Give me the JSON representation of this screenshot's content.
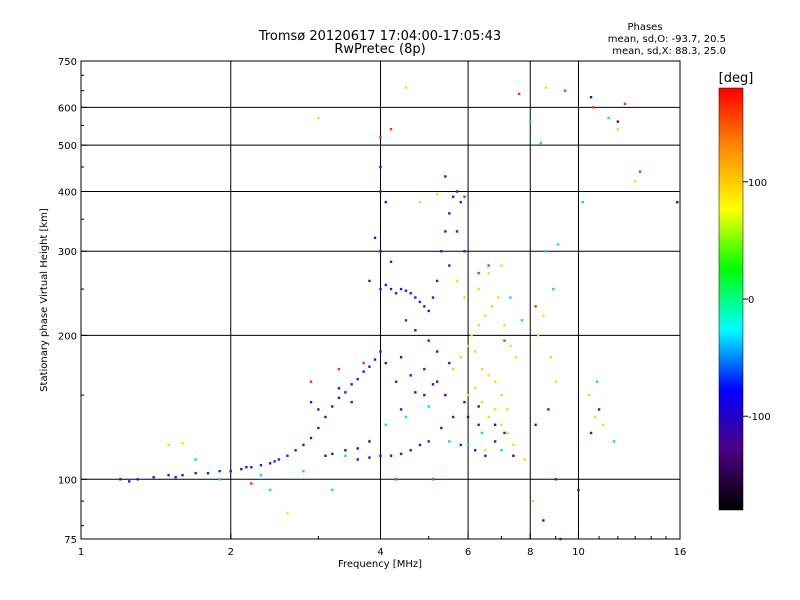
{
  "chart_data": {
    "type": "scatter",
    "title": "Tromsø 20120617 17:04:00-17:05:43",
    "subtitle": "RwPretec (8p)",
    "xlabel": "Frequency [MHz]",
    "ylabel": "Stationary phase Virtual Height [km]",
    "xscale": "log",
    "yscale": "log",
    "xlim": [
      1,
      16
    ],
    "ylim": [
      75,
      750
    ],
    "x_ticks": [
      1,
      2,
      4,
      6,
      8,
      10,
      16
    ],
    "x_tick_labels": [
      "1",
      "2",
      "4",
      "6",
      "8",
      "10",
      "16"
    ],
    "y_ticks": [
      75,
      100,
      200,
      300,
      400,
      500,
      600,
      750
    ],
    "y_tick_labels": [
      "75",
      "100",
      "200",
      "300",
      "400",
      "500",
      "600",
      "750"
    ],
    "x_gridlines": [
      2,
      4,
      6,
      8,
      10
    ],
    "y_gridlines": [
      100,
      200,
      300,
      400,
      500,
      600
    ],
    "legend": {
      "title": "Phases",
      "line1": "mean, sd,O: -93.7, 20.5",
      "line2": "mean, sd,X:  88.3, 25.0",
      "position": "top-right"
    },
    "colorbar": {
      "label": "[deg]",
      "ticks": [
        100,
        0,
        -100
      ],
      "tick_labels": [
        "100",
        "0",
        "-100"
      ],
      "range": [
        -180,
        180
      ],
      "colors": [
        "#000000",
        "#4b0082",
        "#0000ff",
        "#00ffff",
        "#00ff00",
        "#ffff00",
        "#ff8c00",
        "#ff0000"
      ]
    },
    "series": [
      {
        "name": "O-mode trace (blue)",
        "color": "#1a1aff",
        "points": [
          [
            1.2,
            100
          ],
          [
            1.3,
            100
          ],
          [
            1.4,
            101
          ],
          [
            1.5,
            102
          ],
          [
            1.6,
            102
          ],
          [
            1.7,
            103
          ],
          [
            1.8,
            103
          ],
          [
            1.9,
            104
          ],
          [
            2.0,
            104
          ],
          [
            2.1,
            105
          ],
          [
            2.2,
            106
          ],
          [
            2.3,
            107
          ],
          [
            2.4,
            108
          ],
          [
            2.5,
            110
          ],
          [
            2.6,
            112
          ],
          [
            2.7,
            115
          ],
          [
            2.8,
            118
          ],
          [
            2.9,
            122
          ],
          [
            3.0,
            128
          ],
          [
            3.1,
            135
          ],
          [
            3.2,
            142
          ],
          [
            3.3,
            148
          ],
          [
            3.4,
            152
          ],
          [
            3.5,
            158
          ],
          [
            3.6,
            162
          ],
          [
            3.7,
            168
          ],
          [
            3.8,
            172
          ],
          [
            3.9,
            178
          ],
          [
            4.0,
            185
          ],
          [
            4.0,
            250
          ],
          [
            4.1,
            255
          ],
          [
            4.2,
            250
          ],
          [
            4.3,
            245
          ],
          [
            4.4,
            250
          ],
          [
            4.5,
            248
          ],
          [
            4.6,
            245
          ],
          [
            4.7,
            240
          ],
          [
            4.8,
            235
          ],
          [
            4.9,
            230
          ],
          [
            5.0,
            225
          ],
          [
            5.1,
            240
          ],
          [
            5.2,
            260
          ],
          [
            5.3,
            300
          ],
          [
            5.4,
            330
          ],
          [
            5.5,
            360
          ],
          [
            5.6,
            390
          ],
          [
            5.7,
            400
          ],
          [
            5.8,
            380
          ],
          [
            4.0,
            300
          ],
          [
            4.0,
            400
          ],
          [
            4.0,
            450
          ],
          [
            3.9,
            320
          ],
          [
            3.8,
            260
          ],
          [
            4.5,
            215
          ],
          [
            4.7,
            205
          ],
          [
            5.0,
            195
          ],
          [
            5.2,
            185
          ],
          [
            5.5,
            175
          ],
          [
            3.6,
            110
          ],
          [
            3.8,
            111
          ],
          [
            4.0,
            112
          ],
          [
            4.2,
            112
          ],
          [
            4.4,
            113
          ],
          [
            4.6,
            115
          ],
          [
            4.8,
            118
          ],
          [
            5.0,
            120
          ],
          [
            5.3,
            128
          ],
          [
            5.6,
            135
          ],
          [
            5.9,
            145
          ],
          [
            6.2,
            115
          ],
          [
            6.5,
            112
          ],
          [
            6.8,
            120
          ],
          [
            7.1,
            125
          ],
          [
            4.3,
            160
          ],
          [
            4.6,
            165
          ],
          [
            4.9,
            170
          ],
          [
            5.2,
            160
          ],
          [
            3.0,
            140
          ],
          [
            2.9,
            145
          ],
          [
            3.3,
            155
          ],
          [
            5.5,
            280
          ],
          [
            5.7,
            330
          ],
          [
            5.9,
            300
          ],
          [
            4.2,
            285
          ],
          [
            5.4,
            430
          ],
          [
            8.2,
            130
          ],
          [
            8.7,
            140
          ],
          [
            9.0,
            100
          ],
          [
            10.6,
            125
          ],
          [
            11.0,
            140
          ],
          [
            1.25,
            99
          ],
          [
            1.55,
            101
          ],
          [
            2.15,
            106
          ],
          [
            2.45,
            109
          ],
          [
            3.5,
            145
          ],
          [
            4.4,
            140
          ],
          [
            4.9,
            150
          ],
          [
            5.8,
            118
          ],
          [
            6.3,
            130
          ],
          [
            4.1,
            380
          ]
        ]
      },
      {
        "name": "X-mode trace (yellow/green)",
        "color": "#e6e600",
        "points": [
          [
            5.6,
            170
          ],
          [
            5.8,
            180
          ],
          [
            6.0,
            190
          ],
          [
            6.2,
            185
          ],
          [
            6.4,
            170
          ],
          [
            6.6,
            165
          ],
          [
            6.8,
            160
          ],
          [
            7.0,
            150
          ],
          [
            7.2,
            140
          ],
          [
            6.1,
            200
          ],
          [
            6.3,
            210
          ],
          [
            6.5,
            220
          ],
          [
            6.7,
            230
          ],
          [
            6.9,
            240
          ],
          [
            7.1,
            210
          ],
          [
            7.3,
            190
          ],
          [
            7.5,
            180
          ],
          [
            6.0,
            150
          ],
          [
            6.2,
            155
          ],
          [
            6.4,
            145
          ],
          [
            6.6,
            135
          ],
          [
            6.8,
            140
          ],
          [
            7.0,
            130
          ],
          [
            7.2,
            125
          ],
          [
            5.7,
            260
          ],
          [
            5.9,
            240
          ],
          [
            6.3,
            250
          ],
          [
            6.6,
            270
          ],
          [
            7.0,
            280
          ],
          [
            8.3,
            200
          ],
          [
            8.5,
            220
          ],
          [
            8.8,
            180
          ],
          [
            9.0,
            160
          ],
          [
            8.6,
            660
          ],
          [
            4.5,
            660
          ],
          [
            4.8,
            380
          ],
          [
            5.2,
            395
          ],
          [
            3.0,
            570
          ],
          [
            1.5,
            118
          ],
          [
            1.6,
            119
          ],
          [
            10.5,
            150
          ],
          [
            10.8,
            135
          ],
          [
            11.2,
            130
          ],
          [
            12.0,
            540
          ],
          [
            13.0,
            420
          ],
          [
            6.5,
            115
          ],
          [
            7.4,
            118
          ],
          [
            7.8,
            110
          ],
          [
            8.1,
            90
          ],
          [
            2.6,
            85
          ]
        ]
      },
      {
        "name": "Other phases (cyan)",
        "color": "#00e0e0",
        "points": [
          [
            1.7,
            110
          ],
          [
            1.9,
            100
          ],
          [
            2.3,
            102
          ],
          [
            2.8,
            104
          ],
          [
            3.4,
            112
          ],
          [
            4.1,
            130
          ],
          [
            4.5,
            135
          ],
          [
            5.0,
            142
          ],
          [
            5.5,
            120
          ],
          [
            6.0,
            118
          ],
          [
            6.4,
            125
          ],
          [
            7.0,
            115
          ],
          [
            8.0,
            560
          ],
          [
            8.4,
            505
          ],
          [
            8.6,
            300
          ],
          [
            9.1,
            310
          ],
          [
            10.2,
            380
          ],
          [
            10.9,
            160
          ],
          [
            11.5,
            570
          ],
          [
            11.8,
            120
          ],
          [
            3.2,
            95
          ],
          [
            2.4,
            95
          ],
          [
            7.3,
            240
          ],
          [
            7.7,
            215
          ],
          [
            8.9,
            250
          ]
        ]
      },
      {
        "name": "Other phases (red/orange)",
        "color": "#ff3300",
        "points": [
          [
            2.9,
            160
          ],
          [
            3.3,
            170
          ],
          [
            3.7,
            175
          ],
          [
            4.0,
            520
          ],
          [
            4.2,
            540
          ],
          [
            5.9,
            390
          ],
          [
            6.3,
            270
          ],
          [
            6.6,
            280
          ],
          [
            7.6,
            640
          ],
          [
            8.2,
            230
          ],
          [
            9.4,
            650
          ],
          [
            10.7,
            600
          ],
          [
            12.4,
            610
          ],
          [
            13.3,
            440
          ],
          [
            5.1,
            100
          ],
          [
            4.3,
            100
          ],
          [
            2.2,
            98
          ],
          [
            7.1,
            195
          ]
        ]
      },
      {
        "name": "Other phases (purple/black)",
        "color": "#5a008c",
        "points": [
          [
            3.1,
            112
          ],
          [
            3.2,
            113
          ],
          [
            3.4,
            115
          ],
          [
            3.6,
            116
          ],
          [
            3.8,
            120
          ],
          [
            4.1,
            175
          ],
          [
            4.4,
            180
          ],
          [
            4.7,
            152
          ],
          [
            5.1,
            158
          ],
          [
            5.4,
            150
          ],
          [
            6.0,
            135
          ],
          [
            6.3,
            142
          ],
          [
            6.8,
            130
          ],
          [
            7.4,
            112
          ],
          [
            8.5,
            82
          ],
          [
            9.2,
            75
          ],
          [
            10.0,
            95
          ],
          [
            10.6,
            630
          ],
          [
            12.0,
            560
          ],
          [
            15.8,
            380
          ]
        ]
      }
    ]
  }
}
